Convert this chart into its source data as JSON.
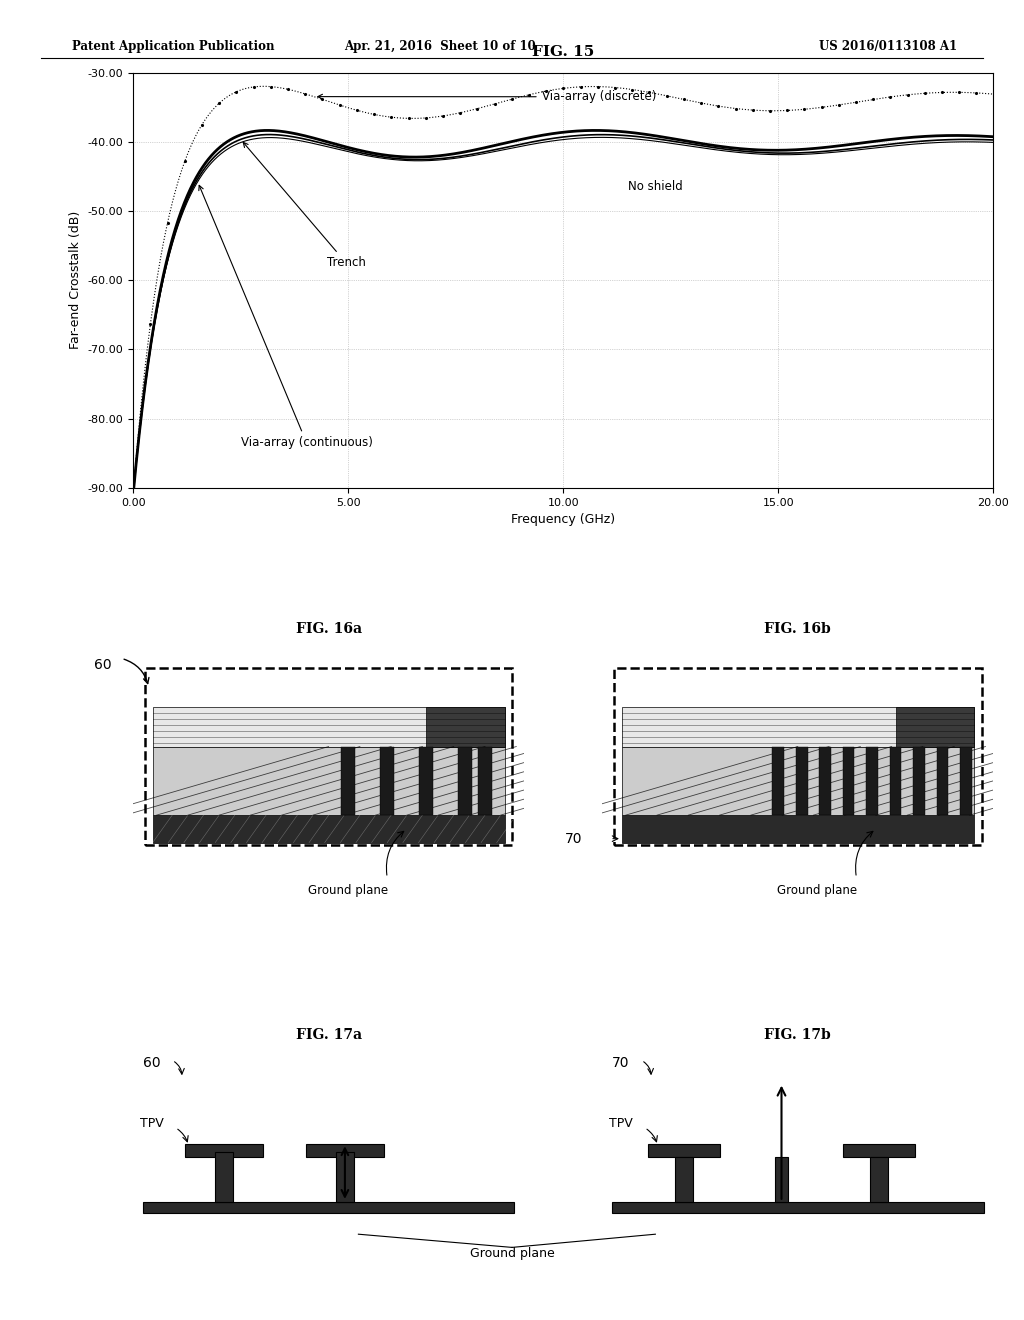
{
  "header_left": "Patent Application Publication",
  "header_center": "Apr. 21, 2016  Sheet 10 of 10",
  "header_right": "US 2016/0113108 A1",
  "fig15_title": "FIG. 15",
  "fig16a_title": "FIG. 16a",
  "fig16b_title": "FIG. 16b",
  "fig17a_title": "FIG. 17a",
  "fig17b_title": "FIG. 17b",
  "xlabel": "Frequency (GHz)",
  "ylabel": "Far-end Crosstalk (dB)",
  "xlim": [
    0.0,
    20.0
  ],
  "ylim": [
    -90.0,
    -30.0
  ],
  "xticks": [
    0.0,
    5.0,
    10.0,
    15.0,
    20.0
  ],
  "yticks": [
    -30.0,
    -40.0,
    -50.0,
    -60.0,
    -70.0,
    -80.0,
    -90.0
  ],
  "label_no_shield": "No shield",
  "label_trench": "Trench",
  "label_via_discrete": "Via-array (discrete)",
  "label_via_continuous": "Via-array (continuous)",
  "background_color": "#ffffff"
}
